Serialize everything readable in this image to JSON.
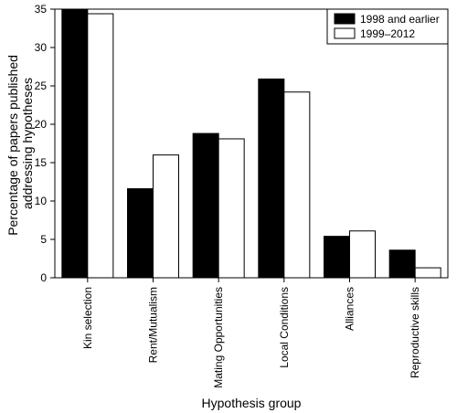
{
  "chart_data": {
    "type": "bar",
    "xlabel": "Hypothesis group",
    "ylabel_lines": [
      "Percentage of papers published",
      "addressing hypotheses"
    ],
    "categories": [
      "Kin selection",
      "Rent/Mutualism",
      "Mating Opportunities",
      "Local Conditions",
      "Alliances",
      "Reproductive skills"
    ],
    "series": [
      {
        "name": "1998 and earlier",
        "color": "#000000",
        "values": [
          34.9,
          11.6,
          18.8,
          25.9,
          5.4,
          3.6
        ]
      },
      {
        "name": "1999–2012",
        "color": "#ffffff",
        "values": [
          34.4,
          16.0,
          18.1,
          24.2,
          6.1,
          1.3
        ]
      }
    ],
    "ylim": [
      0,
      35
    ],
    "yticks": [
      0,
      5,
      10,
      15,
      20,
      25,
      30,
      35
    ],
    "legend_position": "top-right",
    "grid": false
  }
}
